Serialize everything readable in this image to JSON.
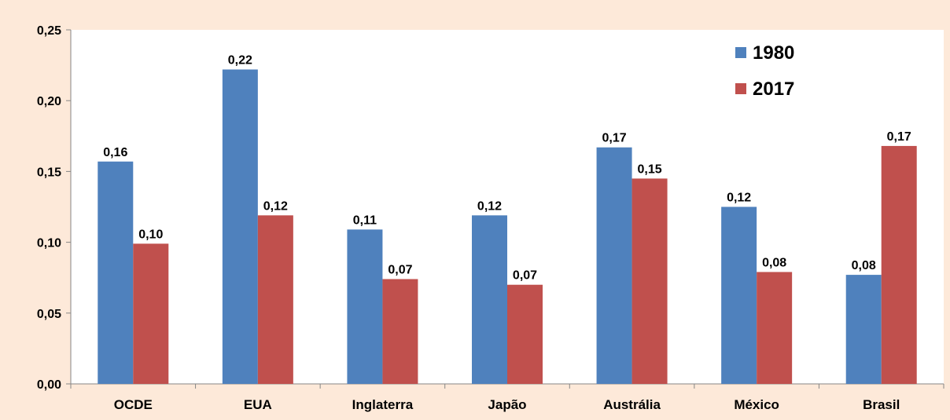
{
  "chart_data": {
    "type": "bar",
    "title": "",
    "xlabel": "",
    "ylabel": "",
    "ylim": [
      0,
      0.25
    ],
    "yticks": [
      "0,00",
      "0,05",
      "0,10",
      "0,15",
      "0,20",
      "0,25"
    ],
    "categories": [
      "OCDE",
      "EUA",
      "Inglaterra",
      "Japão",
      "Austrália",
      "México",
      "Brasil"
    ],
    "series": [
      {
        "name": "1980",
        "color": "#4f81bd",
        "values": [
          0.157,
          0.222,
          0.109,
          0.119,
          0.167,
          0.125,
          0.077
        ],
        "labels": [
          "0,16",
          "0,22",
          "0,11",
          "0,12",
          "0,17",
          "0,12",
          "0,08"
        ]
      },
      {
        "name": "2017",
        "color": "#c0504d",
        "values": [
          0.099,
          0.119,
          0.074,
          0.07,
          0.145,
          0.079,
          0.168
        ],
        "labels": [
          "0,10",
          "0,12",
          "0,07",
          "0,07",
          "0,15",
          "0,08",
          "0,17"
        ]
      }
    ],
    "grid": false,
    "legend_position": "top-right",
    "plot_background": "#ffffff",
    "page_background": "#fde9d9"
  }
}
